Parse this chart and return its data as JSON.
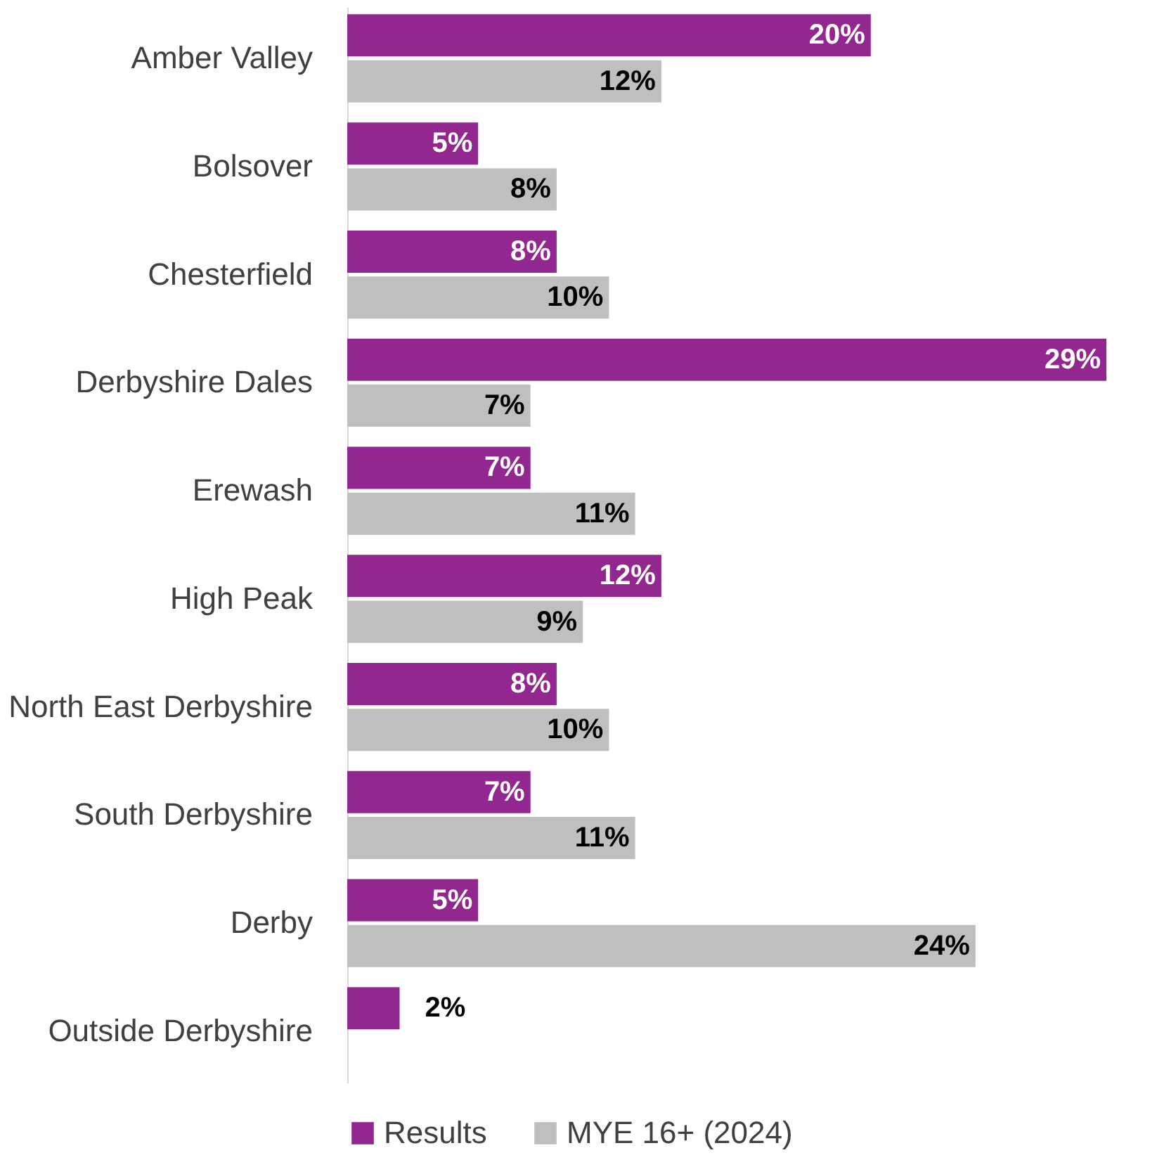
{
  "chart_data": {
    "type": "bar",
    "orientation": "horizontal",
    "categories": [
      "Amber Valley",
      "Bolsover",
      "Chesterfield",
      "Derbyshire Dales",
      "Erewash",
      "High Peak",
      "North East Derbyshire",
      "South Derbyshire",
      "Derby",
      "Outside Derbyshire"
    ],
    "series": [
      {
        "name": "Results",
        "color": "#92278f",
        "values": [
          20,
          5,
          8,
          29,
          7,
          12,
          8,
          7,
          5,
          2
        ],
        "value_labels": [
          "20%",
          "5%",
          "8%",
          "29%",
          "7%",
          "12%",
          "8%",
          "7%",
          "5%",
          "2%"
        ]
      },
      {
        "name": "MYE 16+ (2024)",
        "color": "#bfbfbf",
        "values": [
          12,
          8,
          10,
          7,
          11,
          9,
          10,
          11,
          24,
          null
        ],
        "value_labels": [
          "12%",
          "8%",
          "10%",
          "7%",
          "11%",
          "9%",
          "10%",
          "11%",
          "24%",
          null
        ]
      }
    ],
    "data_labels": true,
    "legend": "bottom"
  }
}
